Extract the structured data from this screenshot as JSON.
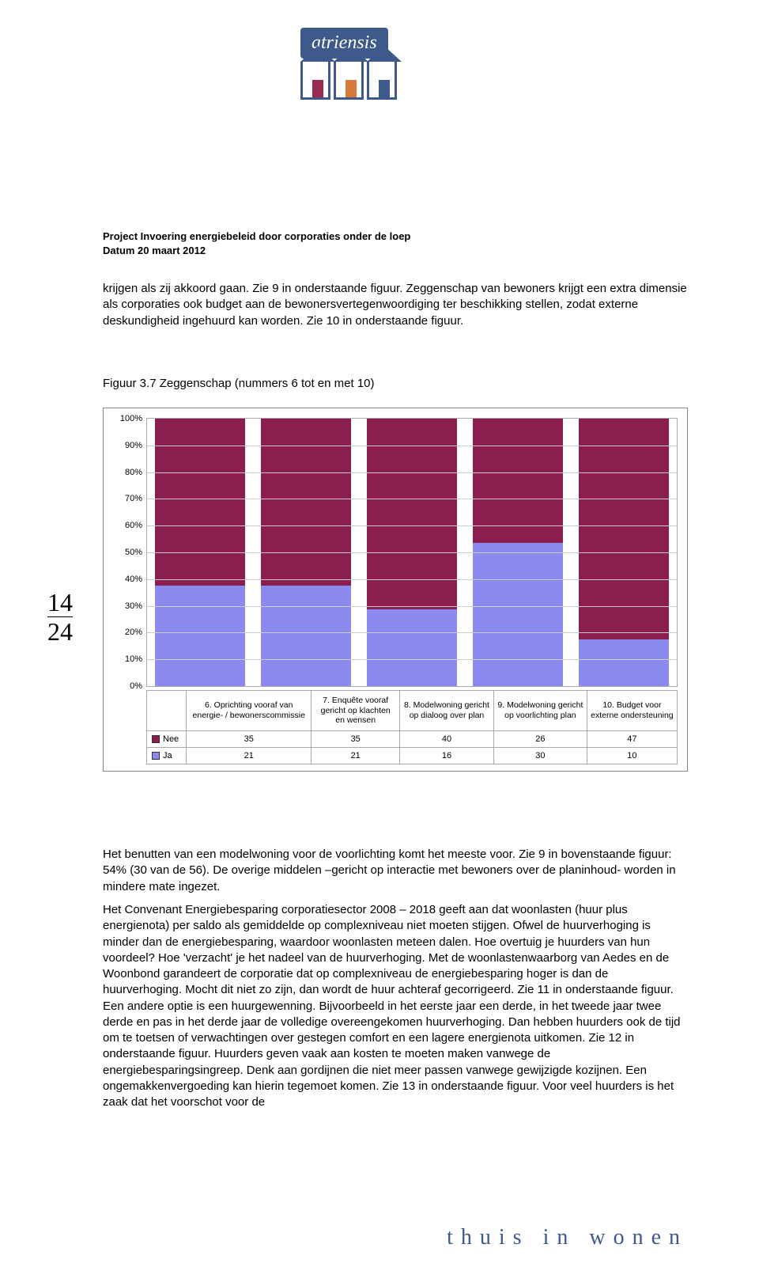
{
  "header": {
    "logo_text": "atriensis",
    "project_line": "Project Invoering energiebeleid door corporaties onder de loep",
    "date_line": "Datum 20 maart 2012"
  },
  "page_number": {
    "current": "14",
    "total": "24"
  },
  "paragraphs": {
    "p1": "krijgen als zij akkoord gaan. Zie 9 in onderstaande figuur. Zeggenschap van bewoners krijgt een extra dimensie als corporaties ook budget aan de bewonersvertegenwoordiging ter beschikking stellen, zodat externe deskundigheid ingehuurd kan worden. Zie 10 in onderstaande figuur.",
    "fig_caption": "Figuur 3.7  Zeggenschap (nummers 6 tot en met 10)",
    "p2": "Het benutten van een modelwoning voor de voorlichting komt het meeste voor. Zie 9 in bovenstaande figuur: 54% (30 van de 56). De overige middelen –gericht op interactie met bewoners over de planinhoud- worden in mindere mate ingezet.",
    "p3": "Het Convenant Energiebesparing corporatiesector 2008 – 2018 geeft aan dat woonlasten (huur plus energienota) per saldo als gemiddelde op complexniveau niet moeten stijgen. Ofwel de huurverhoging is minder dan de energiebesparing, waardoor woonlasten meteen dalen. Hoe overtuig je huurders van hun voordeel? Hoe 'verzacht' je het nadeel van de huurverhoging. Met de woonlastenwaarborg van Aedes en de Woonbond garandeert de corporatie dat op complexniveau de energiebesparing hoger is dan de huurverhoging. Mocht dit niet zo zijn, dan wordt de huur achteraf gecorrigeerd. Zie 11 in onderstaande figuur. Een andere optie is een huurgewenning. Bijvoorbeeld in het eerste jaar een derde, in het tweede jaar twee derde en pas in het derde jaar de volledige overeengekomen huurverhoging. Dan hebben huurders ook de tijd om te toetsen of verwachtingen over gestegen comfort en een lagere energienota uitkomen. Zie 12 in onderstaande figuur. Huurders geven vaak aan kosten te moeten maken vanwege de energiebesparingsingreep. Denk aan gordijnen die niet meer passen vanwege gewijzigde kozijnen. Een ongemakkenvergoeding kan hierin tegemoet komen. Zie 13 in onderstaande figuur. Voor veel huurders is het zaak dat het voorschot voor de"
  },
  "chart": {
    "type": "stacked-bar-100",
    "y_ticks": [
      "0%",
      "10%",
      "20%",
      "30%",
      "40%",
      "50%",
      "60%",
      "70%",
      "80%",
      "90%",
      "100%"
    ],
    "series": [
      {
        "name": "Nee",
        "color": "#8a1e4e"
      },
      {
        "name": "Ja",
        "color": "#8a8af0"
      }
    ],
    "categories": [
      "6. Oprichting vooraf van energie- / bewonerscommissie",
      "7. Enquête vooraf gericht op klachten en wensen",
      "8. Modelwoning gericht op dialoog over plan",
      "9. Modelwoning gericht op voorlichting plan",
      "10. Budget voor externe ondersteuning"
    ],
    "data": {
      "Nee": [
        35,
        35,
        40,
        26,
        47
      ],
      "Ja": [
        21,
        21,
        16,
        30,
        10
      ]
    },
    "legend_marker_border": "#333333",
    "grid_color": "#cccccc",
    "border_color": "#aaaaaa",
    "background_color": "#ffffff",
    "label_fontsize": 11
  },
  "footer": {
    "tagline": "thuis in wonen"
  }
}
